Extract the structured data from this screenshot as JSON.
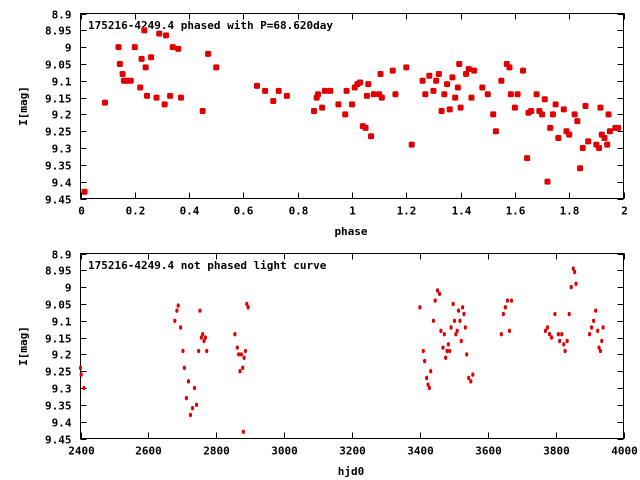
{
  "chart_data": [
    {
      "type": "scatter",
      "title": "175216-4249.4 phased with P=68.620day",
      "xlabel": "phase",
      "ylabel": "I[mag]",
      "xlim": [
        0,
        2
      ],
      "ylim": [
        9.45,
        8.9
      ],
      "xticks": [
        0,
        0.2,
        0.4,
        0.6,
        0.8,
        1,
        1.2,
        1.4,
        1.6,
        1.8,
        2
      ],
      "xtick_labels": [
        "0",
        "0.2",
        "0.4",
        "0.6",
        "0.8",
        "1",
        "1.2",
        "1.4",
        "1.6",
        "1.8",
        "2"
      ],
      "yticks": [
        8.9,
        8.95,
        9.0,
        9.05,
        9.1,
        9.15,
        9.2,
        9.25,
        9.3,
        9.35,
        9.4,
        9.45
      ],
      "ytick_labels": [
        "8.9",
        "8.95",
        "9",
        "9.05",
        "9.1",
        "9.15",
        "9.2",
        "9.25",
        "9.3",
        "9.35",
        "9.4",
        "9.45"
      ],
      "color": "#e00000",
      "grid": false,
      "points": [
        [
          0.015,
          9.43
        ],
        [
          0.09,
          9.165
        ],
        [
          0.14,
          9.0
        ],
        [
          0.145,
          9.05
        ],
        [
          0.155,
          9.08
        ],
        [
          0.16,
          9.1
        ],
        [
          0.17,
          9.1
        ],
        [
          0.185,
          9.1
        ],
        [
          0.2,
          9.0
        ],
        [
          0.22,
          9.12
        ],
        [
          0.225,
          9.035
        ],
        [
          0.235,
          8.95
        ],
        [
          0.24,
          9.06
        ],
        [
          0.245,
          9.145
        ],
        [
          0.26,
          9.03
        ],
        [
          0.28,
          9.15
        ],
        [
          0.29,
          8.96
        ],
        [
          0.31,
          9.17
        ],
        [
          0.315,
          8.965
        ],
        [
          0.33,
          9.145
        ],
        [
          0.34,
          9.0
        ],
        [
          0.36,
          9.005
        ],
        [
          0.37,
          9.15
        ],
        [
          0.45,
          9.19
        ],
        [
          0.47,
          9.02
        ],
        [
          0.5,
          9.06
        ],
        [
          0.65,
          9.115
        ],
        [
          0.68,
          9.13
        ],
        [
          0.71,
          9.16
        ],
        [
          0.73,
          9.13
        ],
        [
          0.76,
          9.145
        ],
        [
          0.86,
          9.19
        ],
        [
          0.87,
          9.15
        ],
        [
          0.875,
          9.14
        ],
        [
          0.89,
          9.18
        ],
        [
          0.9,
          9.13
        ],
        [
          0.92,
          9.13
        ],
        [
          0.95,
          9.17
        ],
        [
          0.975,
          9.2
        ],
        [
          0.98,
          9.13
        ],
        [
          1.0,
          9.17
        ],
        [
          1.01,
          9.12
        ],
        [
          1.02,
          9.11
        ],
        [
          1.03,
          9.105
        ],
        [
          1.04,
          9.235
        ],
        [
          1.05,
          9.24
        ],
        [
          1.055,
          9.145
        ],
        [
          1.06,
          9.11
        ],
        [
          1.07,
          9.265
        ],
        [
          1.08,
          9.14
        ],
        [
          1.1,
          9.14
        ],
        [
          1.105,
          9.08
        ],
        [
          1.11,
          9.15
        ],
        [
          1.15,
          9.07
        ],
        [
          1.16,
          9.14
        ],
        [
          1.2,
          9.06
        ],
        [
          1.22,
          9.29
        ],
        [
          1.26,
          9.1
        ],
        [
          1.27,
          9.14
        ],
        [
          1.285,
          9.085
        ],
        [
          1.3,
          9.13
        ],
        [
          1.31,
          9.1
        ],
        [
          1.32,
          9.08
        ],
        [
          1.33,
          9.19
        ],
        [
          1.34,
          9.14
        ],
        [
          1.35,
          9.11
        ],
        [
          1.36,
          9.185
        ],
        [
          1.37,
          9.09
        ],
        [
          1.38,
          9.15
        ],
        [
          1.39,
          9.12
        ],
        [
          1.395,
          9.05
        ],
        [
          1.4,
          9.18
        ],
        [
          1.42,
          9.08
        ],
        [
          1.43,
          9.065
        ],
        [
          1.44,
          9.15
        ],
        [
          1.45,
          9.07
        ],
        [
          1.48,
          9.12
        ],
        [
          1.5,
          9.14
        ],
        [
          1.52,
          9.2
        ],
        [
          1.53,
          9.25
        ],
        [
          1.55,
          9.1
        ],
        [
          1.57,
          9.05
        ],
        [
          1.58,
          9.06
        ],
        [
          1.585,
          9.14
        ],
        [
          1.6,
          9.18
        ],
        [
          1.61,
          9.14
        ],
        [
          1.63,
          9.07
        ],
        [
          1.645,
          9.33
        ],
        [
          1.65,
          9.195
        ],
        [
          1.66,
          9.19
        ],
        [
          1.68,
          9.14
        ],
        [
          1.69,
          9.19
        ],
        [
          1.7,
          9.2
        ],
        [
          1.71,
          9.155
        ],
        [
          1.72,
          9.4
        ],
        [
          1.73,
          9.24
        ],
        [
          1.74,
          9.2
        ],
        [
          1.75,
          9.17
        ],
        [
          1.76,
          9.27
        ],
        [
          1.78,
          9.185
        ],
        [
          1.79,
          9.25
        ],
        [
          1.8,
          9.26
        ],
        [
          1.82,
          9.2
        ],
        [
          1.83,
          9.22
        ],
        [
          1.84,
          9.36
        ],
        [
          1.85,
          9.3
        ],
        [
          1.86,
          9.175
        ],
        [
          1.87,
          9.28
        ],
        [
          1.9,
          9.29
        ],
        [
          1.91,
          9.3
        ],
        [
          1.915,
          9.18
        ],
        [
          1.92,
          9.26
        ],
        [
          1.93,
          9.27
        ],
        [
          1.94,
          9.29
        ],
        [
          1.945,
          9.2
        ],
        [
          1.95,
          9.25
        ],
        [
          1.97,
          9.24
        ],
        [
          1.98,
          9.24
        ]
      ]
    },
    {
      "type": "scatter",
      "title": "175216-4249.4 not phased light curve",
      "xlabel": "hjd0",
      "ylabel": "I[mag]",
      "xlim": [
        2400,
        4000
      ],
      "ylim": [
        9.45,
        8.9
      ],
      "xticks": [
        2400,
        2600,
        2800,
        3000,
        3200,
        3400,
        3600,
        3800,
        4000
      ],
      "xtick_labels": [
        "2400",
        "2600",
        "2800",
        "3000",
        "3200",
        "3400",
        "3600",
        "3800",
        "4000"
      ],
      "yticks": [
        8.9,
        8.95,
        9.0,
        9.05,
        9.1,
        9.15,
        9.2,
        9.25,
        9.3,
        9.35,
        9.4,
        9.45
      ],
      "ytick_labels": [
        "8.9",
        "8.95",
        "9",
        "9.05",
        "9.1",
        "9.15",
        "9.2",
        "9.25",
        "9.3",
        "9.35",
        "9.4",
        "9.45"
      ],
      "color": "#e00000",
      "grid": false,
      "points": [
        [
          2400,
          9.24
        ],
        [
          2402,
          9.26
        ],
        [
          2410,
          9.3
        ],
        [
          2678,
          9.1
        ],
        [
          2684,
          9.07
        ],
        [
          2688,
          9.055
        ],
        [
          2695,
          9.12
        ],
        [
          2702,
          9.19
        ],
        [
          2706,
          9.24
        ],
        [
          2712,
          9.33
        ],
        [
          2718,
          9.28
        ],
        [
          2724,
          9.38
        ],
        [
          2730,
          9.36
        ],
        [
          2736,
          9.3
        ],
        [
          2742,
          9.35
        ],
        [
          2748,
          9.19
        ],
        [
          2752,
          9.07
        ],
        [
          2756,
          9.15
        ],
        [
          2760,
          9.14
        ],
        [
          2764,
          9.16
        ],
        [
          2768,
          9.15
        ],
        [
          2772,
          9.19
        ],
        [
          2855,
          9.14
        ],
        [
          2862,
          9.18
        ],
        [
          2866,
          9.2
        ],
        [
          2870,
          9.25
        ],
        [
          2874,
          9.2
        ],
        [
          2878,
          9.24
        ],
        [
          2882,
          9.21
        ],
        [
          2886,
          9.19
        ],
        [
          2880,
          9.43
        ],
        [
          2890,
          9.05
        ],
        [
          2894,
          9.06
        ],
        [
          3400,
          9.06
        ],
        [
          3410,
          9.19
        ],
        [
          3414,
          9.22
        ],
        [
          3420,
          9.27
        ],
        [
          3424,
          9.29
        ],
        [
          3428,
          9.3
        ],
        [
          3432,
          9.25
        ],
        [
          3440,
          9.1
        ],
        [
          3445,
          9.04
        ],
        [
          3452,
          9.01
        ],
        [
          3458,
          9.02
        ],
        [
          3462,
          9.13
        ],
        [
          3468,
          9.18
        ],
        [
          3472,
          9.14
        ],
        [
          3476,
          9.21
        ],
        [
          3480,
          9.19
        ],
        [
          3484,
          9.17
        ],
        [
          3488,
          9.19
        ],
        [
          3492,
          9.12
        ],
        [
          3498,
          9.05
        ],
        [
          3502,
          9.1
        ],
        [
          3506,
          9.14
        ],
        [
          3510,
          9.13
        ],
        [
          3514,
          9.07
        ],
        [
          3518,
          9.1
        ],
        [
          3522,
          9.16
        ],
        [
          3526,
          9.06
        ],
        [
          3530,
          9.08
        ],
        [
          3534,
          9.12
        ],
        [
          3538,
          9.2
        ],
        [
          3544,
          9.27
        ],
        [
          3550,
          9.28
        ],
        [
          3556,
          9.26
        ],
        [
          3640,
          9.14
        ],
        [
          3646,
          9.08
        ],
        [
          3652,
          9.06
        ],
        [
          3658,
          9.04
        ],
        [
          3664,
          9.13
        ],
        [
          3670,
          9.04
        ],
        [
          3770,
          9.13
        ],
        [
          3776,
          9.12
        ],
        [
          3782,
          9.14
        ],
        [
          3788,
          9.15
        ],
        [
          3798,
          9.08
        ],
        [
          3808,
          9.14
        ],
        [
          3812,
          9.16
        ],
        [
          3818,
          9.14
        ],
        [
          3824,
          9.17
        ],
        [
          3828,
          9.19
        ],
        [
          3834,
          9.16
        ],
        [
          3840,
          9.08
        ],
        [
          3846,
          9.0
        ],
        [
          3852,
          8.945
        ],
        [
          3856,
          8.955
        ],
        [
          3860,
          8.99
        ],
        [
          3900,
          9.14
        ],
        [
          3906,
          9.12
        ],
        [
          3912,
          9.1
        ],
        [
          3918,
          9.07
        ],
        [
          3924,
          9.13
        ],
        [
          3928,
          9.18
        ],
        [
          3932,
          9.19
        ],
        [
          3936,
          9.16
        ],
        [
          3940,
          9.12
        ]
      ]
    }
  ]
}
